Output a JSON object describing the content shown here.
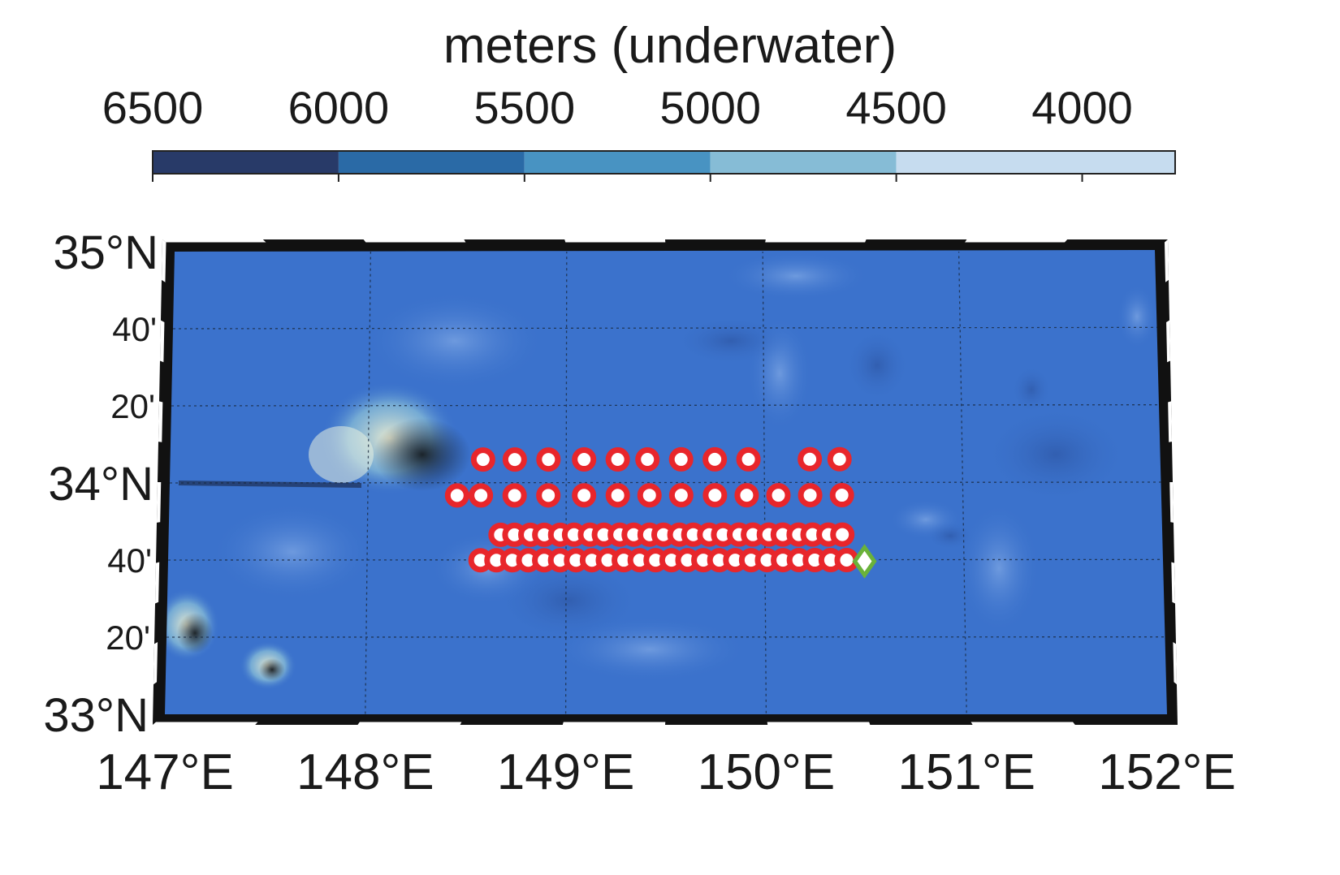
{
  "colorbar": {
    "title": "meters (underwater)",
    "ticks": [
      6500,
      6000,
      5500,
      5000,
      4500,
      4000
    ],
    "bins": [
      {
        "from": 6500,
        "to": 6000,
        "color": "#283a68"
      },
      {
        "from": 6000,
        "to": 5500,
        "color": "#2a6aa6"
      },
      {
        "from": 5500,
        "to": 5000,
        "color": "#4893c2"
      },
      {
        "from": 5000,
        "to": 4500,
        "color": "#86bcd6"
      },
      {
        "from": 4500,
        "to": 4000,
        "color": "#c6dcef"
      }
    ]
  },
  "map": {
    "lon_range": [
      147,
      152
    ],
    "lat_range": [
      33,
      35
    ],
    "ocean_color": "#3b72cc",
    "marker_color": "#e8262b",
    "station_color": "#6ab23a",
    "lon_labels": [
      {
        "lon": 147,
        "text": "147°E"
      },
      {
        "lon": 148,
        "text": "148°E"
      },
      {
        "lon": 149,
        "text": "149°E"
      },
      {
        "lon": 150,
        "text": "150°E"
      },
      {
        "lon": 151,
        "text": "151°E"
      },
      {
        "lon": 152,
        "text": "152°E"
      }
    ],
    "lat_labels": [
      {
        "lat": 35,
        "text": "35°N",
        "major": true
      },
      {
        "lat": 34.6667,
        "text": "40'",
        "major": false
      },
      {
        "lat": 34.3333,
        "text": "20'",
        "major": false
      },
      {
        "lat": 34,
        "text": "34°N",
        "major": true
      },
      {
        "lat": 33.6667,
        "text": "40'",
        "major": false
      },
      {
        "lat": 33.3333,
        "text": "20'",
        "major": false
      },
      {
        "lat": 33,
        "text": "33°N",
        "major": true
      }
    ],
    "observation_rows": [
      {
        "lat": 34.1,
        "lons": [
          148.58,
          148.74,
          148.91,
          149.09,
          149.26,
          149.41,
          149.58,
          149.75,
          149.92,
          150.23,
          150.38
        ]
      },
      {
        "lat": 33.945,
        "lons": [
          148.45,
          148.57,
          148.74,
          148.91,
          149.09,
          149.26,
          149.42,
          149.58,
          149.75,
          149.91,
          150.07,
          150.23,
          150.39
        ]
      },
      {
        "lat": 33.775,
        "lons": [
          148.67,
          148.74,
          148.82,
          148.89,
          148.97,
          149.04,
          149.12,
          149.19,
          149.27,
          149.34,
          149.42,
          149.49,
          149.57,
          149.64,
          149.72,
          149.79,
          149.87,
          149.94,
          150.02,
          150.09,
          150.17,
          150.24,
          150.32,
          150.39
        ]
      },
      {
        "lat": 33.665,
        "lons": [
          148.57,
          148.65,
          148.73,
          148.81,
          148.89,
          148.97,
          149.05,
          149.13,
          149.21,
          149.29,
          149.37,
          149.45,
          149.53,
          149.61,
          149.69,
          149.77,
          149.85,
          149.93,
          150.01,
          150.09,
          150.17,
          150.25,
          150.33,
          150.41
        ]
      }
    ],
    "station": {
      "lon": 150.5,
      "lat": 33.66
    }
  }
}
